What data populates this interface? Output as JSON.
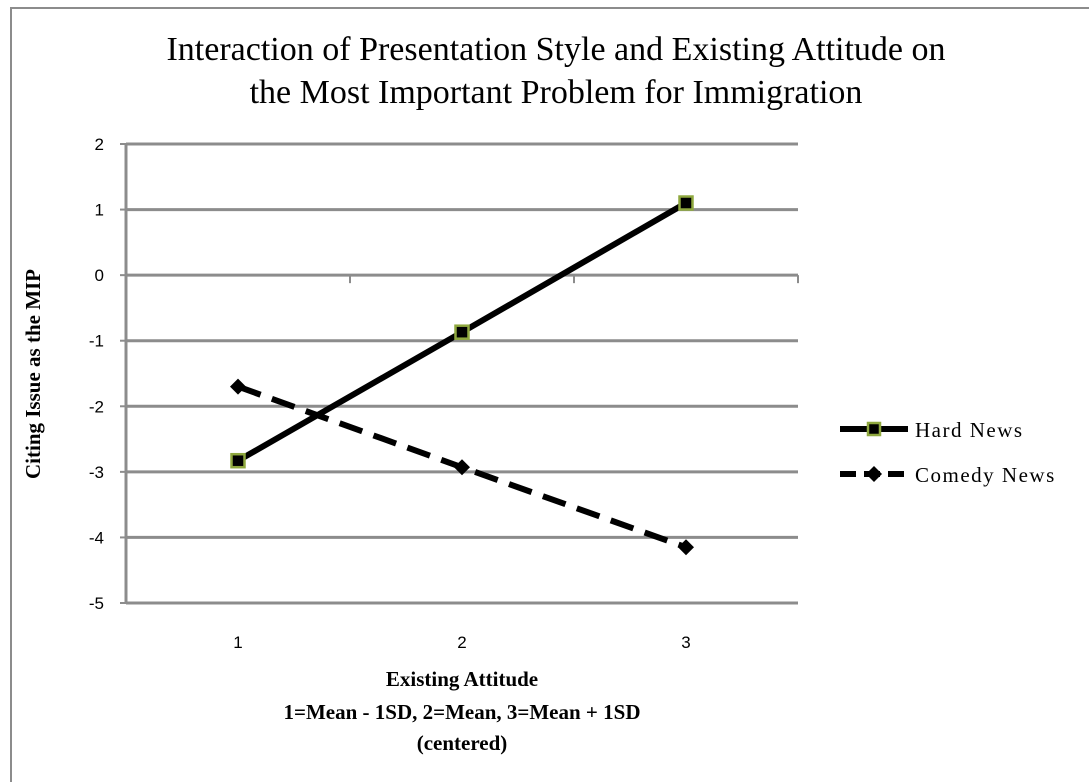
{
  "chart_data": {
    "type": "line",
    "title_lines": [
      "Interaction of Presentation Style and Existing Attitude on",
      "the Most Important Problem for Immigration"
    ],
    "categories": [
      "1",
      "2",
      "3"
    ],
    "ylabel": "Citing Issue as the MIP",
    "xlabel_lines": [
      "Existing Attitude",
      "1=Mean - 1SD, 2=Mean,  3=Mean + 1SD",
      "(centered)"
    ],
    "ylim": [
      -5,
      2
    ],
    "yticks": [
      "2",
      "1",
      "0",
      "-1",
      "-2",
      "-3",
      "-4",
      "-5"
    ],
    "grid": true,
    "legend_position": "right",
    "series": [
      {
        "name": "Hard News",
        "values": [
          -2.83,
          -0.87,
          1.1
        ],
        "style": "solid",
        "marker": "square",
        "color": "#000000",
        "marker_edge": "#8fa83f"
      },
      {
        "name": "Comedy News",
        "values": [
          -1.7,
          -2.93,
          -4.15
        ],
        "style": "dashed",
        "marker": "diamond",
        "color": "#000000"
      }
    ]
  }
}
